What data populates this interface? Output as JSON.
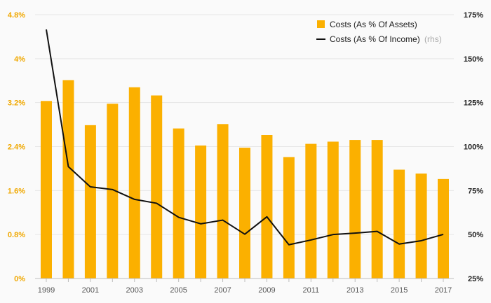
{
  "chart_data": {
    "type": "bar+line",
    "categories": [
      "1999",
      "2000",
      "2001",
      "2002",
      "2003",
      "2004",
      "2005",
      "2006",
      "2007",
      "2008",
      "2009",
      "2010",
      "2011",
      "2012",
      "2013",
      "2014",
      "2015",
      "2016",
      "2017"
    ],
    "x_tick_labels": [
      "1999",
      "2001",
      "2003",
      "2005",
      "2007",
      "2009",
      "2011",
      "2013",
      "2015",
      "2017"
    ],
    "series": [
      {
        "name": "Costs (As % Of Assets)",
        "type": "bar",
        "axis": "left",
        "color": "#fbb000",
        "values": [
          3.23,
          3.61,
          2.79,
          3.18,
          3.48,
          3.33,
          2.73,
          2.42,
          2.81,
          2.38,
          2.61,
          2.21,
          2.45,
          2.49,
          2.52,
          2.52,
          1.98,
          1.91,
          1.81
        ]
      },
      {
        "name": "Costs (As % Of Income)",
        "name_suffix": "(rhs)",
        "type": "line",
        "axis": "right",
        "color": "#111111",
        "values": [
          166.6,
          88.6,
          77.1,
          75.6,
          70.0,
          67.8,
          59.8,
          56.1,
          58.2,
          50.2,
          60.1,
          44.2,
          46.9,
          50.0,
          50.8,
          51.8,
          44.6,
          46.5,
          50.1
        ]
      }
    ],
    "y_left": {
      "min": 0,
      "max": 4.8,
      "ticks": [
        0,
        0.8,
        1.6,
        2.4,
        3.2,
        4.0,
        4.8
      ],
      "tick_labels": [
        "0%",
        "0.8%",
        "1.6%",
        "2.4%",
        "3.2%",
        "4%",
        "4.8%"
      ]
    },
    "y_right": {
      "min": 25,
      "max": 175,
      "ticks": [
        25,
        50,
        75,
        100,
        125,
        150,
        175
      ],
      "tick_labels": [
        "25%",
        "50%",
        "75%",
        "100%",
        "125%",
        "150%",
        "175%"
      ]
    },
    "grid": true,
    "legend_position": "top-right",
    "title": "",
    "xlabel": "",
    "ylabel": ""
  },
  "colors": {
    "background": "#fafafa",
    "grid": "#e6e6e6",
    "bar": "#fbb000",
    "line": "#111111",
    "left_axis_text": "#f0a800",
    "right_axis_text": "#222222"
  }
}
